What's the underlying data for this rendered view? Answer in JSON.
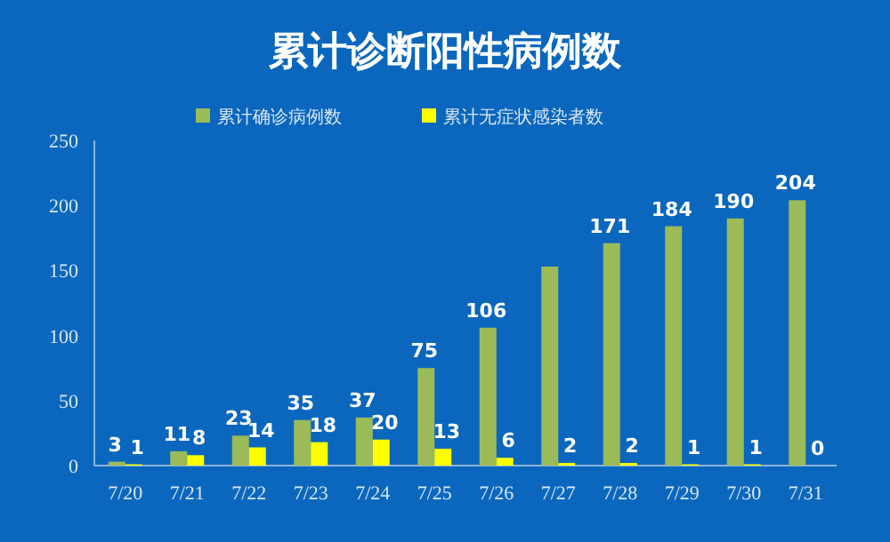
{
  "chart_data": {
    "type": "bar",
    "title": "累计诊断阳性病例数",
    "categories": [
      "7/20",
      "7/21",
      "7/22",
      "7/23",
      "7/24",
      "7/25",
      "7/26",
      "7/27",
      "7/28",
      "7/29",
      "7/30",
      "7/31"
    ],
    "series": [
      {
        "name": "累计确诊病例数",
        "color": "#9bbb59",
        "values": [
          3,
          11,
          23,
          35,
          37,
          75,
          106,
          153,
          171,
          184,
          190,
          204
        ],
        "value_labels": [
          "3",
          "11",
          "23",
          "35",
          "37",
          "75",
          "106",
          null,
          "171",
          "184",
          "190",
          "204"
        ]
      },
      {
        "name": "累计无症状感染者数",
        "color": "#ffff00",
        "values": [
          1,
          8,
          14,
          18,
          20,
          13,
          6,
          2,
          2,
          1,
          1,
          0
        ],
        "value_labels": [
          "1",
          "8",
          "14",
          "18",
          "20",
          "13",
          "6",
          "2",
          "2",
          "1",
          "1",
          "0"
        ]
      }
    ],
    "ylim": [
      0,
      250
    ],
    "yticks": [
      0,
      50,
      100,
      150,
      200,
      250
    ],
    "grid": false,
    "legend": "top"
  }
}
